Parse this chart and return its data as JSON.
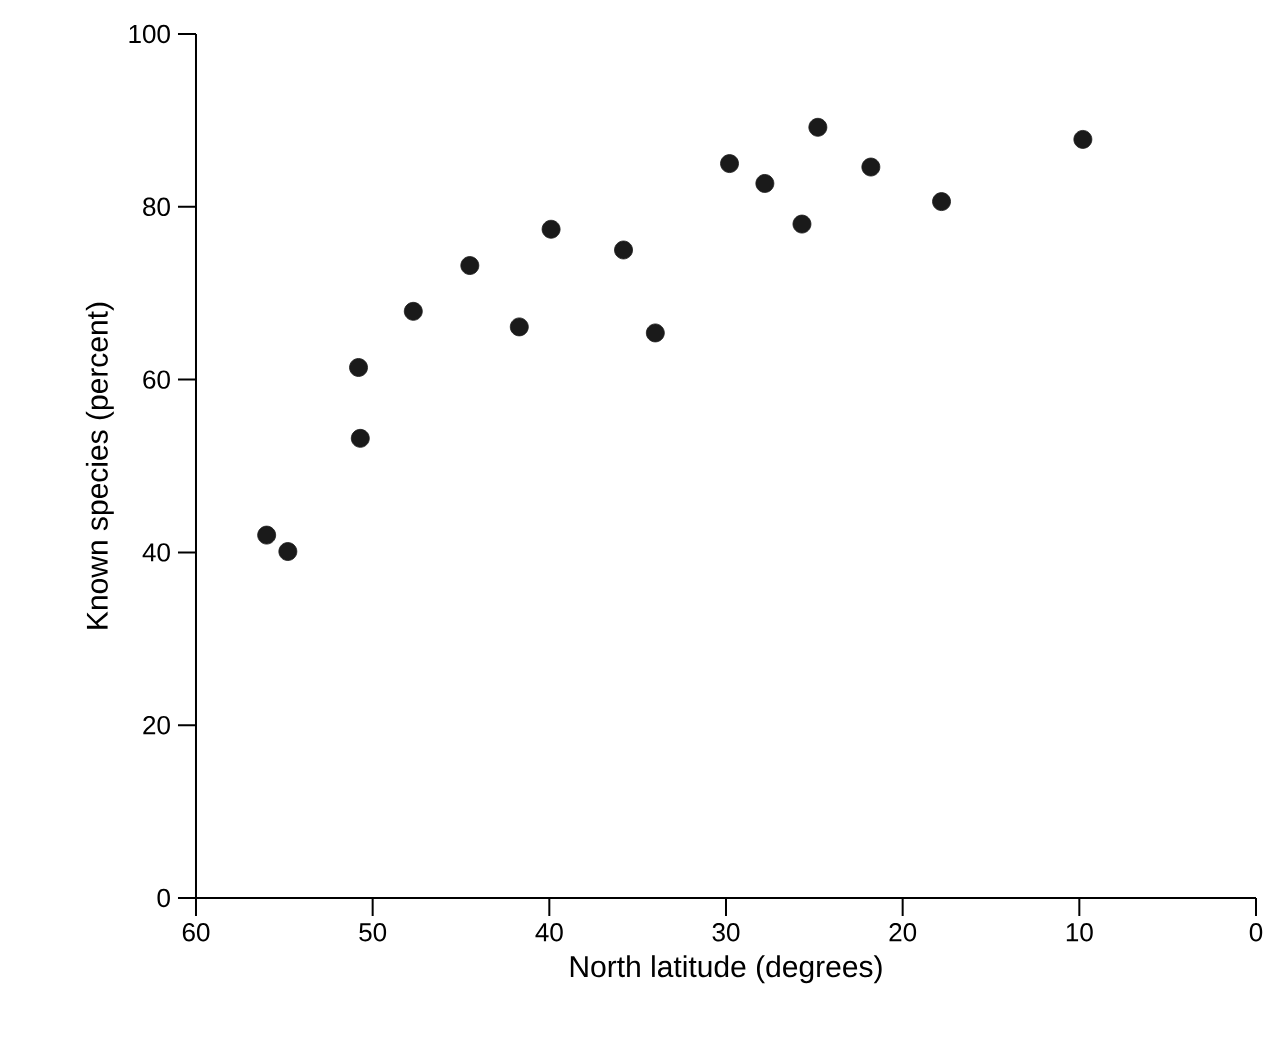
{
  "chart_data": {
    "type": "scatter",
    "xlabel": "North latitude (degrees)",
    "ylabel": "Known species (percent)",
    "x": [
      56.0,
      54.8,
      50.8,
      50.7,
      47.7,
      44.5,
      41.7,
      39.9,
      35.8,
      34.0,
      29.8,
      27.8,
      24.8,
      25.7,
      21.8,
      17.8,
      9.8
    ],
    "values": [
      42.0,
      40.1,
      61.4,
      53.2,
      67.9,
      73.2,
      66.1,
      77.4,
      75.0,
      65.4,
      85.0,
      82.7,
      89.2,
      78.0,
      84.6,
      80.6,
      87.8
    ],
    "color": "#1a1a1a",
    "xlim": [
      60,
      0
    ],
    "ylim": [
      0,
      100
    ],
    "xticks": [
      60,
      50,
      40,
      30,
      20,
      10,
      0
    ],
    "yticks": [
      0,
      20,
      40,
      60,
      80,
      100
    ]
  }
}
